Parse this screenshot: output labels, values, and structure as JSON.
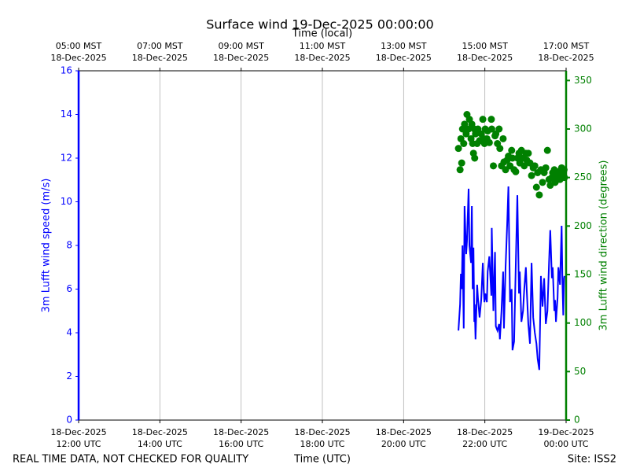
{
  "chart_data": {
    "type": "line",
    "title": "Surface wind 19-Dec-2025 00:00:00",
    "x2label": "Time (local)",
    "xlabel": "Time (UTC)",
    "ylabel": "3m Lufft wind speed (m/s)",
    "y2label": "3m Lufft wind direction (degrees)",
    "footer_left": "REAL TIME DATA, NOT CHECKED FOR QUALITY",
    "footer_right": "Site: ISS2",
    "grid": "x",
    "xlim": [
      12,
      24
    ],
    "xticks": [
      {
        "value": 12,
        "label": [
          "18-Dec-2025",
          "12:00 UTC"
        ]
      },
      {
        "value": 14,
        "label": [
          "18-Dec-2025",
          "14:00 UTC"
        ]
      },
      {
        "value": 16,
        "label": [
          "18-Dec-2025",
          "16:00 UTC"
        ]
      },
      {
        "value": 18,
        "label": [
          "18-Dec-2025",
          "18:00 UTC"
        ]
      },
      {
        "value": 20,
        "label": [
          "18-Dec-2025",
          "20:00 UTC"
        ]
      },
      {
        "value": 22,
        "label": [
          "18-Dec-2025",
          "22:00 UTC"
        ]
      },
      {
        "value": 24,
        "label": [
          "19-Dec-2025",
          "00:00 UTC"
        ]
      }
    ],
    "x2ticks": [
      {
        "value": 12,
        "label": [
          "05:00 MST",
          "18-Dec-2025"
        ]
      },
      {
        "value": 14,
        "label": [
          "07:00 MST",
          "18-Dec-2025"
        ]
      },
      {
        "value": 16,
        "label": [
          "09:00 MST",
          "18-Dec-2025"
        ]
      },
      {
        "value": 18,
        "label": [
          "11:00 MST",
          "18-Dec-2025"
        ]
      },
      {
        "value": 20,
        "label": [
          "13:00 MST",
          "18-Dec-2025"
        ]
      },
      {
        "value": 22,
        "label": [
          "15:00 MST",
          "18-Dec-2025"
        ]
      },
      {
        "value": 24,
        "label": [
          "17:00 MST",
          "18-Dec-2025"
        ]
      }
    ],
    "ylim": [
      0,
      16
    ],
    "yticks": [
      0,
      2,
      4,
      6,
      8,
      10,
      12,
      14,
      16
    ],
    "y2lim": [
      0,
      360
    ],
    "y2ticks": [
      0,
      50,
      100,
      150,
      200,
      250,
      300,
      350
    ],
    "series": [
      {
        "name": "3m Lufft wind speed",
        "type": "line",
        "color": "#0000ff",
        "x": [
          21.35,
          21.39,
          21.41,
          21.43,
          21.45,
          21.48,
          21.5,
          21.54,
          21.56,
          21.6,
          21.62,
          21.66,
          21.68,
          21.7,
          21.72,
          21.74,
          21.75,
          21.77,
          21.81,
          21.83,
          21.87,
          21.91,
          21.95,
          21.97,
          21.99,
          22.01,
          22.05,
          22.07,
          22.11,
          22.16,
          22.17,
          22.21,
          22.25,
          22.27,
          22.31,
          22.35,
          22.37,
          22.41,
          22.45,
          22.47,
          22.51,
          22.55,
          22.58,
          22.62,
          22.66,
          22.68,
          22.72,
          22.76,
          22.8,
          22.84,
          22.86,
          22.9,
          22.94,
          22.97,
          23.01,
          23.03,
          23.07,
          23.11,
          23.15,
          23.19,
          23.23,
          23.27,
          23.3,
          23.34,
          23.38,
          23.42,
          23.46,
          23.5,
          23.54,
          23.58,
          23.61,
          23.65,
          23.67,
          23.71,
          23.73,
          23.75,
          23.79,
          23.81,
          23.85,
          23.89,
          23.91,
          23.93,
          23.95,
          23.96
        ],
        "values": [
          4.1,
          5.3,
          6.7,
          6.0,
          8.0,
          4.2,
          9.8,
          7.6,
          8.2,
          10.6,
          8.0,
          7.2,
          9.8,
          6.0,
          7.9,
          4.5,
          5.3,
          3.7,
          6.2,
          5.6,
          4.7,
          5.5,
          7.2,
          6.0,
          5.4,
          5.8,
          5.4,
          6.8,
          7.5,
          5.7,
          8.8,
          5.0,
          7.7,
          4.3,
          4.1,
          4.4,
          3.7,
          5.0,
          6.8,
          4.2,
          7.0,
          9.0,
          10.7,
          5.4,
          6.0,
          3.2,
          3.6,
          7.0,
          10.3,
          5.8,
          6.8,
          4.5,
          5.0,
          6.0,
          7.0,
          6.0,
          4.4,
          3.5,
          7.2,
          4.7,
          4.0,
          3.5,
          2.8,
          2.3,
          6.6,
          5.2,
          6.5,
          4.4,
          5.0,
          7.2,
          8.7,
          6.5,
          7.0,
          5.0,
          5.5,
          4.5,
          5.6,
          7.0,
          6.2,
          8.9,
          6.3,
          4.8,
          6.5,
          6.6
        ]
      },
      {
        "name": "3m Lufft wind direction",
        "type": "scatter",
        "axis": "y2",
        "color": "#008000",
        "x": [
          21.35,
          21.39,
          21.41,
          21.43,
          21.45,
          21.48,
          21.5,
          21.54,
          21.56,
          21.6,
          21.62,
          21.66,
          21.68,
          21.7,
          21.72,
          21.74,
          21.75,
          21.77,
          21.81,
          21.83,
          21.87,
          21.91,
          21.95,
          21.97,
          21.99,
          22.01,
          22.05,
          22.07,
          22.11,
          22.16,
          22.17,
          22.21,
          22.25,
          22.27,
          22.31,
          22.35,
          22.37,
          22.41,
          22.45,
          22.47,
          22.51,
          22.55,
          22.58,
          22.62,
          22.66,
          22.68,
          22.72,
          22.76,
          22.8,
          22.84,
          22.86,
          22.9,
          22.94,
          22.97,
          23.01,
          23.03,
          23.07,
          23.11,
          23.15,
          23.19,
          23.23,
          23.27,
          23.3,
          23.34,
          23.38,
          23.42,
          23.46,
          23.5,
          23.54,
          23.58,
          23.61,
          23.65,
          23.67,
          23.71,
          23.73,
          23.75,
          23.79,
          23.81,
          23.85,
          23.89,
          23.91,
          23.93,
          23.95,
          23.96
        ],
        "values": [
          280,
          258,
          290,
          265,
          300,
          285,
          305,
          295,
          315,
          300,
          310,
          290,
          305,
          285,
          275,
          300,
          270,
          295,
          285,
          300,
          288,
          295,
          310,
          290,
          285,
          300,
          290,
          298,
          286,
          310,
          300,
          262,
          293,
          295,
          285,
          300,
          280,
          262,
          290,
          266,
          258,
          268,
          272,
          262,
          278,
          270,
          258,
          256,
          270,
          275,
          265,
          278,
          270,
          262,
          275,
          268,
          275,
          265,
          252,
          260,
          262,
          240,
          255,
          232,
          258,
          245,
          255,
          260,
          278,
          248,
          242,
          250,
          255,
          258,
          245,
          250,
          252,
          256,
          248,
          260,
          252,
          255,
          258,
          250
        ]
      }
    ]
  }
}
